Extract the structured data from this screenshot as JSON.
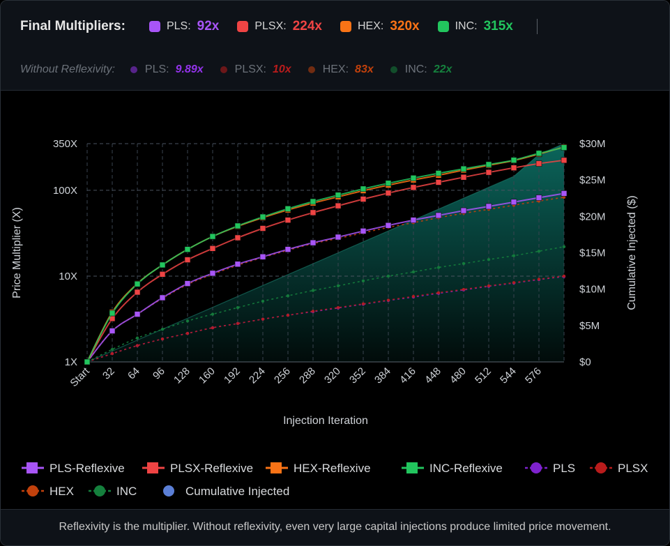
{
  "header": {
    "final_title": "Final Multipliers:",
    "final_items": [
      {
        "label": "PLS:",
        "value": "92x",
        "color": "#a855f7"
      },
      {
        "label": "PLSX:",
        "value": "224x",
        "color": "#ef4444"
      },
      {
        "label": "HEX:",
        "value": "320x",
        "color": "#f97316"
      },
      {
        "label": "INC:",
        "value": "315x",
        "color": "#22c55e"
      }
    ],
    "without_title": "Without Reflexivity:",
    "without_items": [
      {
        "label": "PLS:",
        "value": "9.89x",
        "color": "#9333ea"
      },
      {
        "label": "PLSX:",
        "value": "10x",
        "color": "#b91c1c"
      },
      {
        "label": "HEX:",
        "value": "83x",
        "color": "#c2410c"
      },
      {
        "label": "INC:",
        "value": "22x",
        "color": "#15803d"
      }
    ]
  },
  "chart_data": {
    "type": "line",
    "xlabel": "Injection Iteration",
    "ylabel": "Price Multiplier (X)",
    "y2label": "Cumulative Injected ($)",
    "yscale": "log",
    "ylim": [
      1,
      350
    ],
    "y_ticks": [
      {
        "value": 1,
        "label": "1X"
      },
      {
        "value": 10,
        "label": "10X"
      },
      {
        "value": 100,
        "label": "100X"
      },
      {
        "value": 350,
        "label": "350X"
      }
    ],
    "y2lim": [
      0,
      30000000
    ],
    "y2_ticks": [
      "$0",
      "$5M",
      "$10M",
      "$15M",
      "$20M",
      "$25M",
      "$30M"
    ],
    "categories": [
      "Start",
      "32",
      "64",
      "96",
      "128",
      "160",
      "192",
      "224",
      "256",
      "288",
      "320",
      "352",
      "384",
      "416",
      "448",
      "480",
      "512",
      "544",
      "576",
      ""
    ],
    "grid": true,
    "series": [
      {
        "name": "PLS-Reflexive",
        "color": "#a855f7",
        "marker": "square",
        "values": [
          1,
          2.3,
          3.6,
          5.6,
          8.2,
          10.8,
          13.8,
          16.8,
          20.5,
          24.5,
          28.5,
          33.5,
          39,
          45,
          51,
          58,
          65,
          73,
          82,
          92
        ]
      },
      {
        "name": "PLSX-Reflexive",
        "color": "#ef4444",
        "marker": "square",
        "values": [
          1,
          3.2,
          6.5,
          10.5,
          15.5,
          21,
          28,
          36,
          45,
          55,
          66,
          79,
          93,
          108,
          124,
          142,
          162,
          183,
          205,
          224
        ]
      },
      {
        "name": "HEX-Reflexive",
        "color": "#f97316",
        "marker": "square",
        "values": [
          1,
          3.8,
          8.2,
          13.5,
          20.5,
          29,
          38,
          48,
          59,
          71,
          84,
          99,
          115,
          132,
          150,
          172,
          196,
          222,
          265,
          320
        ]
      },
      {
        "name": "INC-Reflexive",
        "color": "#22c55e",
        "marker": "square",
        "values": [
          1,
          3.7,
          8.1,
          13.5,
          20.5,
          29,
          38.5,
          49,
          61,
          74,
          88,
          104,
          121,
          139,
          158,
          178,
          200,
          225,
          270,
          315
        ]
      },
      {
        "name": "PLS",
        "color": "#7e22ce",
        "marker": "circle",
        "dashed": true,
        "values": [
          1,
          1.25,
          1.55,
          1.85,
          2.15,
          2.5,
          2.8,
          3.15,
          3.5,
          3.85,
          4.25,
          4.7,
          5.2,
          5.7,
          6.3,
          6.9,
          7.6,
          8.3,
          9.1,
          9.89
        ]
      },
      {
        "name": "PLSX",
        "color": "#b91c1c",
        "marker": "circle",
        "dashed": true,
        "values": [
          1,
          1.25,
          1.55,
          1.85,
          2.15,
          2.5,
          2.8,
          3.15,
          3.5,
          3.9,
          4.3,
          4.75,
          5.25,
          5.8,
          6.4,
          7,
          7.7,
          8.4,
          9.2,
          10
        ]
      },
      {
        "name": "HEX",
        "color": "#c2410c",
        "marker": "circle",
        "dashed": true,
        "values": [
          1,
          2.3,
          3.6,
          5.5,
          8,
          10.5,
          13.4,
          16.5,
          20,
          24,
          27.5,
          32,
          37,
          42,
          48,
          54,
          60,
          67,
          75,
          83
        ]
      },
      {
        "name": "INC",
        "color": "#15803d",
        "marker": "circle",
        "dashed": true,
        "values": [
          1,
          1.4,
          1.9,
          2.4,
          3,
          3.6,
          4.3,
          5.1,
          5.9,
          6.8,
          7.7,
          8.8,
          10,
          11.2,
          12.6,
          14,
          15.6,
          17.3,
          19.5,
          22
        ]
      },
      {
        "name": "Cumulative Injected",
        "color": "#3b82f6",
        "axis": "right",
        "area": true,
        "area_color": "#14b8a6",
        "values": [
          0,
          1500000,
          3000000,
          4500000,
          6000000,
          7500000,
          9000000,
          10500000,
          12000000,
          13500000,
          15000000,
          16500000,
          18000000,
          19500000,
          21000000,
          22500000,
          24000000,
          25500000,
          28500000,
          30000000
        ]
      }
    ],
    "legend": [
      {
        "label": "PLS-Reflexive",
        "color": "#a855f7",
        "marker": "square"
      },
      {
        "label": "PLSX-Reflexive",
        "color": "#ef4444",
        "marker": "square"
      },
      {
        "label": "HEX-Reflexive",
        "color": "#f97316",
        "marker": "square"
      },
      {
        "label": "INC-Reflexive",
        "color": "#22c55e",
        "marker": "square"
      },
      {
        "label": "PLS",
        "color": "#7e22ce",
        "marker": "circle"
      },
      {
        "label": "PLSX",
        "color": "#b91c1c",
        "marker": "circle"
      },
      {
        "label": "HEX",
        "color": "#c2410c",
        "marker": "circle"
      },
      {
        "label": "INC",
        "color": "#15803d",
        "marker": "circle"
      },
      {
        "label": "Cumulative Injected",
        "color": "#5b7fd6",
        "marker": "dot"
      }
    ]
  },
  "footer": {
    "text": "Reflexivity is the multiplier. Without reflexivity, even very large capital injections produce limited price movement."
  }
}
